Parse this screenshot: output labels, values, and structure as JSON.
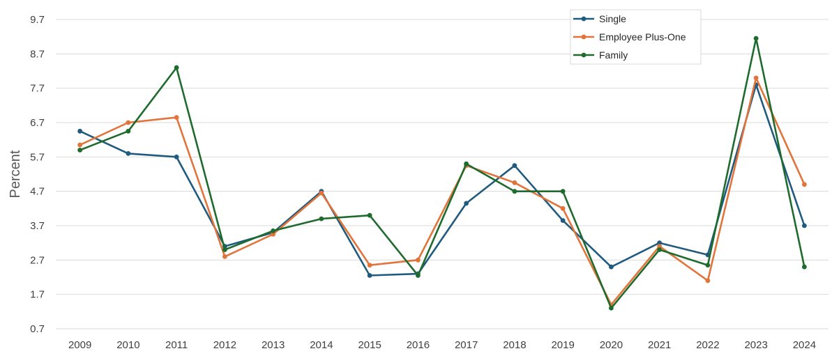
{
  "chart_data": {
    "type": "line",
    "title": "",
    "xlabel": "",
    "ylabel": "Percent",
    "categories": [
      "2009",
      "2010",
      "2011",
      "2012",
      "2013",
      "2014",
      "2015",
      "2016",
      "2017",
      "2018",
      "2019",
      "2020",
      "2021",
      "2022",
      "2023",
      "2024"
    ],
    "yticks": [
      "0.7",
      "1.7",
      "2.7",
      "3.7",
      "4.7",
      "5.7",
      "6.7",
      "7.7",
      "8.7",
      "9.7"
    ],
    "ylim": [
      0.7,
      9.7
    ],
    "grid": "horizontal",
    "legend_position": "top-right",
    "series": [
      {
        "name": "Single",
        "color": "#1f5b7f",
        "values": [
          6.45,
          5.8,
          5.7,
          3.1,
          3.5,
          4.7,
          2.25,
          2.3,
          4.35,
          5.45,
          3.85,
          2.5,
          3.2,
          2.85,
          7.8,
          3.7
        ]
      },
      {
        "name": "Employee Plus-One",
        "color": "#e0743a",
        "values": [
          6.05,
          6.7,
          6.85,
          2.8,
          3.45,
          4.65,
          2.55,
          2.7,
          5.45,
          4.95,
          4.2,
          1.4,
          3.1,
          2.1,
          8.0,
          4.9
        ]
      },
      {
        "name": "Family",
        "color": "#1e6b2d",
        "values": [
          5.9,
          6.45,
          8.3,
          3.0,
          3.55,
          3.9,
          4.0,
          2.25,
          5.5,
          4.7,
          4.7,
          1.3,
          3.0,
          2.55,
          9.15,
          2.5
        ]
      }
    ]
  }
}
